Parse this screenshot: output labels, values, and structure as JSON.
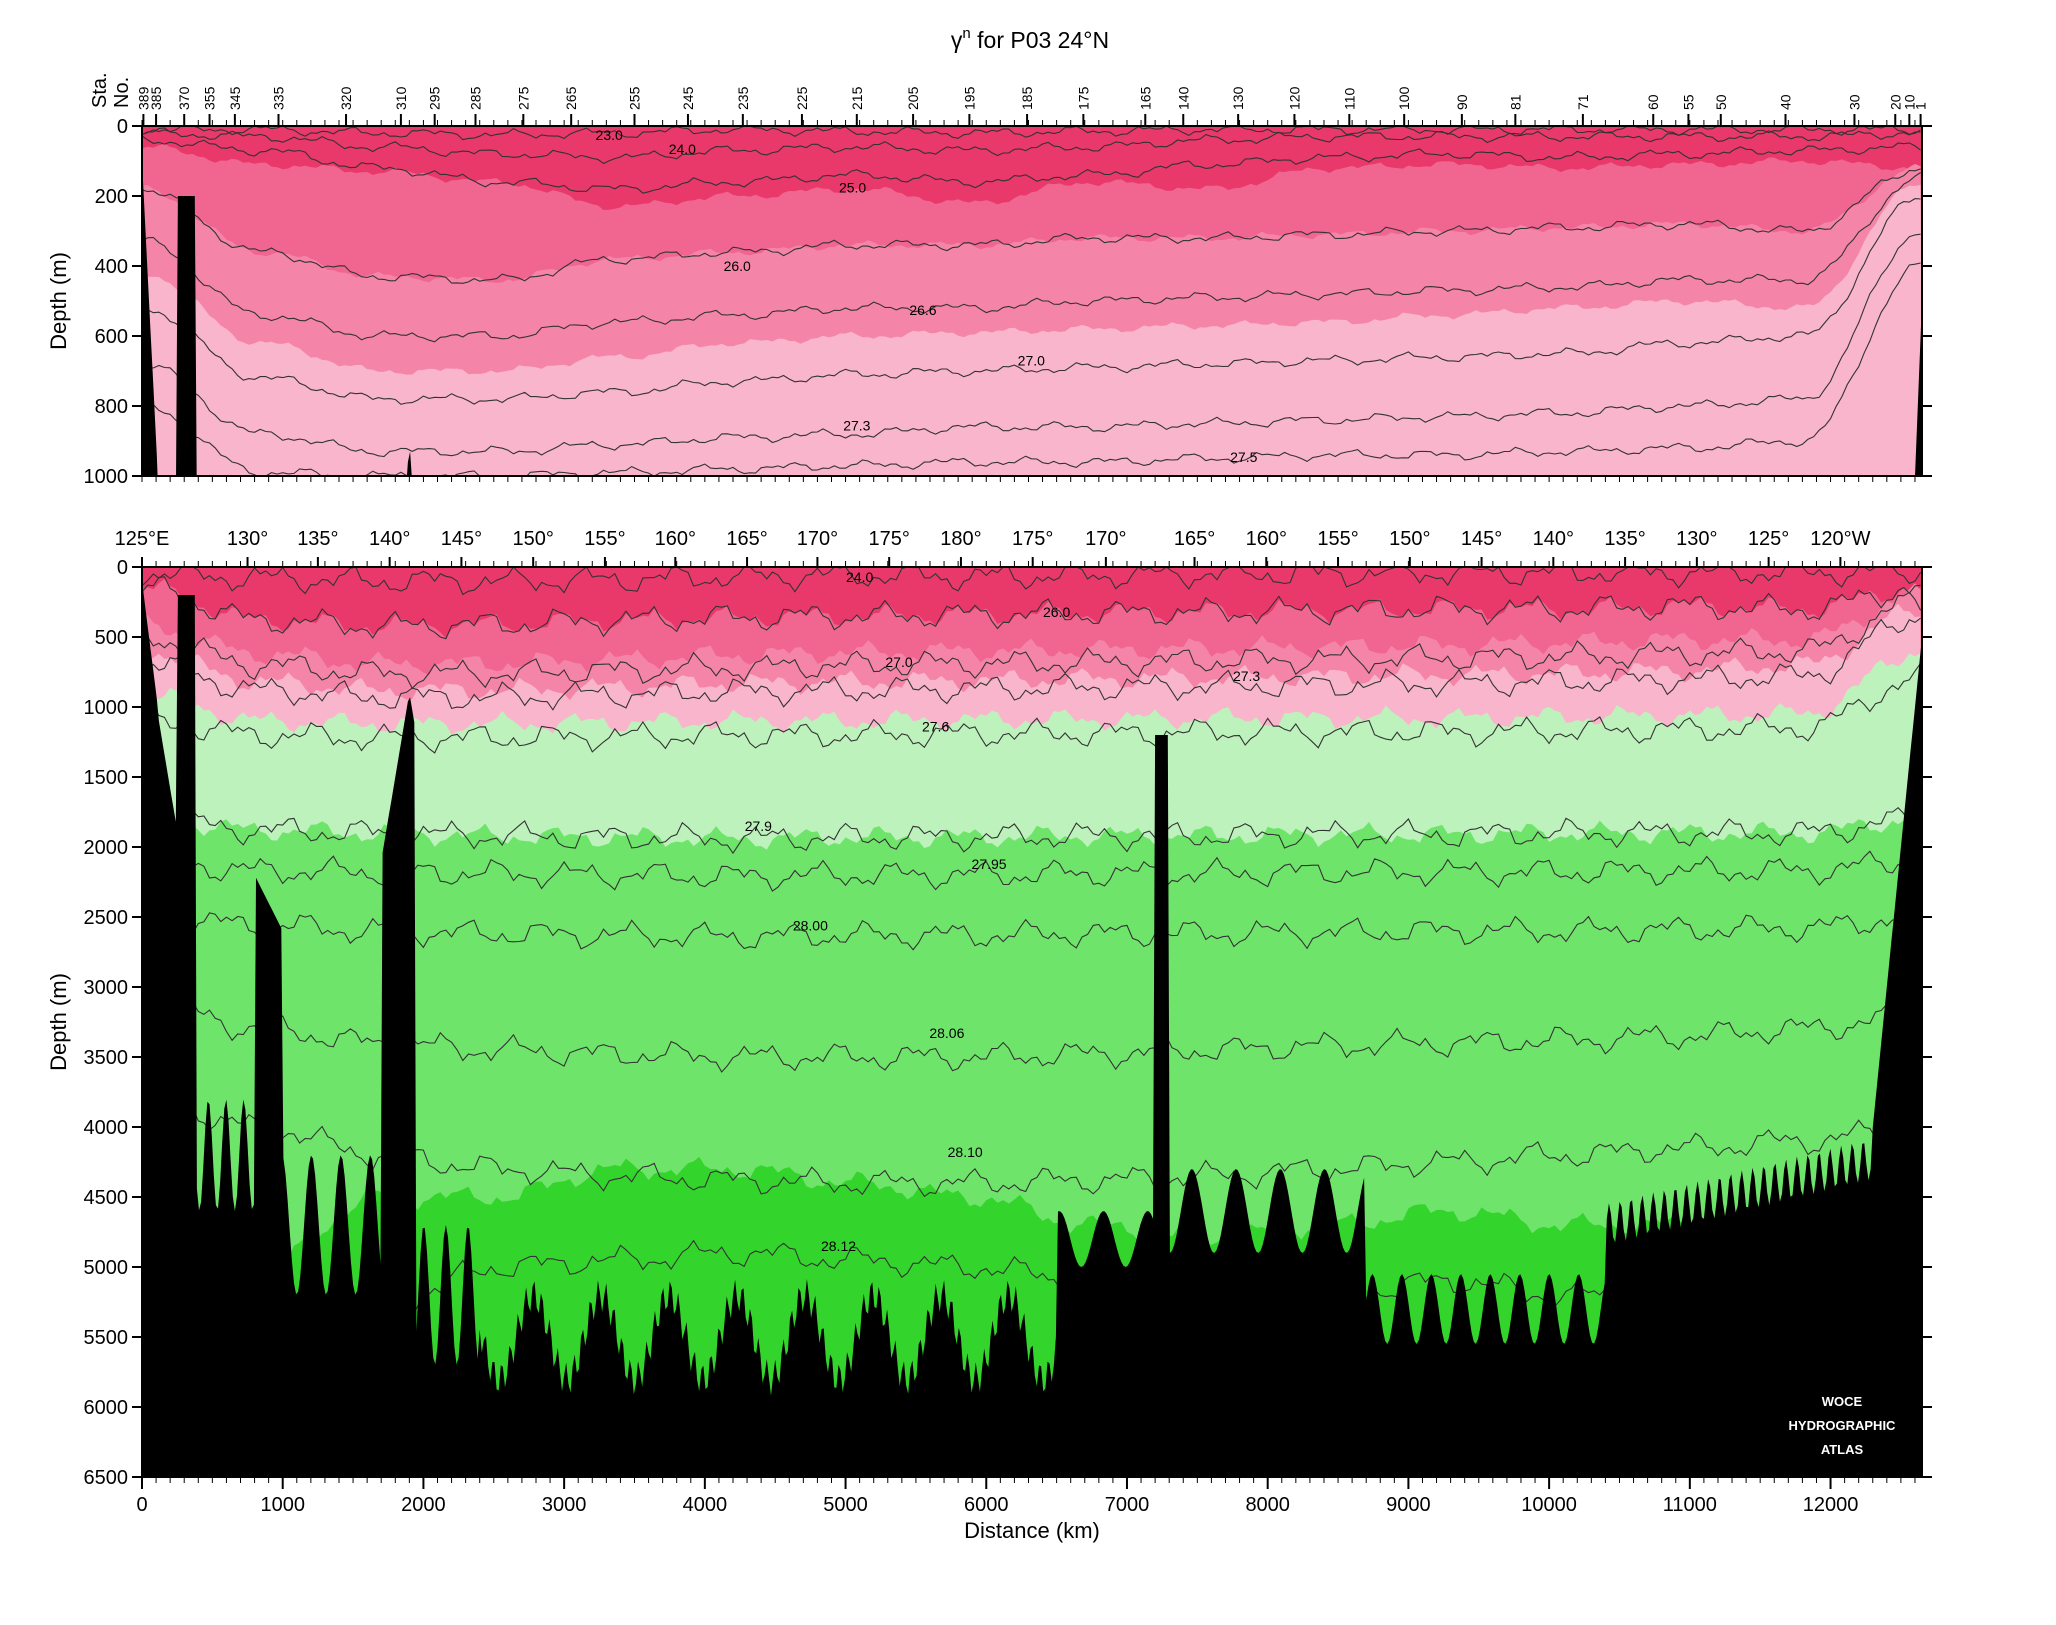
{
  "title_main": "γ",
  "title_sup": "n",
  "title_rest": " for P03 24°N",
  "station_axis_title": [
    "Sta.",
    "No."
  ],
  "watermark": [
    "WOCE",
    "HYDROGRAPHIC",
    "ATLAS"
  ],
  "colors": {
    "band_1": "#e8396a",
    "band_2": "#f06690",
    "band_3": "#f585a8",
    "band_4": "#f9b5cc",
    "band_5": "#bdf2bc",
    "band_6": "#6fe46a",
    "band_7": "#33d42b",
    "bathymetry": "#000000",
    "contour_line": "#333333"
  },
  "chart_data": [
    {
      "type": "section-contour",
      "id": "upper",
      "title": "γn for P03 24°N",
      "ylabel": "Depth (m)",
      "ylim": [
        0,
        1000
      ],
      "xlim": [
        0,
        12650
      ],
      "y_ticks": [
        0,
        200,
        400,
        600,
        800,
        1000
      ],
      "station_ticks": [
        {
          "label": "389",
          "x": 10
        },
        {
          "label": "385",
          "x": 100
        },
        {
          "label": "370",
          "x": 300
        },
        {
          "label": "355",
          "x": 480
        },
        {
          "label": "345",
          "x": 660
        },
        {
          "label": "335",
          "x": 970
        },
        {
          "label": "320",
          "x": 1450
        },
        {
          "label": "310",
          "x": 1840
        },
        {
          "label": "295",
          "x": 2080
        },
        {
          "label": "285",
          "x": 2370
        },
        {
          "label": "275",
          "x": 2710
        },
        {
          "label": "265",
          "x": 3050
        },
        {
          "label": "255",
          "x": 3500
        },
        {
          "label": "245",
          "x": 3880
        },
        {
          "label": "235",
          "x": 4270
        },
        {
          "label": "225",
          "x": 4690
        },
        {
          "label": "215",
          "x": 5080
        },
        {
          "label": "205",
          "x": 5480
        },
        {
          "label": "195",
          "x": 5880
        },
        {
          "label": "185",
          "x": 6290
        },
        {
          "label": "175",
          "x": 6690
        },
        {
          "label": "165",
          "x": 7130
        },
        {
          "label": "140",
          "x": 7400
        },
        {
          "label": "130",
          "x": 7790
        },
        {
          "label": "120",
          "x": 8190
        },
        {
          "label": "110",
          "x": 8580
        },
        {
          "label": "100",
          "x": 8970
        },
        {
          "label": "90",
          "x": 9380
        },
        {
          "label": "81",
          "x": 9760
        },
        {
          "label": "71",
          "x": 10240
        },
        {
          "label": "60",
          "x": 10740
        },
        {
          "label": "55",
          "x": 10990
        },
        {
          "label": "50",
          "x": 11220
        },
        {
          "label": "40",
          "x": 11680
        },
        {
          "label": "30",
          "x": 12170
        },
        {
          "label": "20",
          "x": 12460
        },
        {
          "label": "10",
          "x": 12560
        },
        {
          "label": "1",
          "x": 12640
        }
      ],
      "fill_boundaries": [
        {
          "level": "25.5",
          "depth": [
            60,
            110,
            130,
            160,
            230,
            200,
            180,
            220,
            160,
            180,
            120,
            110,
            120,
            110,
            100,
            120
          ]
        },
        {
          "level": "26.0",
          "depth": [
            180,
            360,
            430,
            440,
            380,
            360,
            340,
            340,
            320,
            320,
            310,
            300,
            290,
            280,
            300,
            120
          ]
        },
        {
          "level": "26.8",
          "depth": [
            420,
            620,
            700,
            700,
            660,
            620,
            600,
            590,
            580,
            570,
            560,
            540,
            520,
            500,
            520,
            160
          ]
        },
        {
          "level": "27.2",
          "depth": [
            600,
            820,
            880,
            880,
            860,
            830,
            820,
            800,
            800,
            780,
            770,
            760,
            750,
            720,
            680,
            250
          ]
        }
      ],
      "contours": [
        {
          "level": "23.0",
          "depth": [
            10,
            10,
            20,
            25,
            20,
            10,
            15,
            20,
            15,
            10,
            10,
            10,
            10,
            10,
            10,
            10
          ]
        },
        {
          "level": "24.0",
          "depth": [
            20,
            30,
            60,
            80,
            90,
            70,
            60,
            70,
            60,
            40,
            30,
            30,
            30,
            30,
            30,
            20
          ]
        },
        {
          "level": "25.0",
          "depth": [
            40,
            70,
            120,
            160,
            180,
            160,
            140,
            160,
            140,
            110,
            90,
            80,
            90,
            80,
            70,
            60
          ]
        },
        {
          "level": "26.0",
          "depth": [
            180,
            360,
            430,
            440,
            380,
            360,
            340,
            340,
            320,
            320,
            310,
            300,
            290,
            280,
            300,
            120
          ]
        },
        {
          "level": "26.6",
          "depth": [
            330,
            540,
            600,
            600,
            560,
            540,
            520,
            520,
            500,
            490,
            480,
            470,
            460,
            440,
            440,
            150
          ]
        },
        {
          "level": "27.0",
          "depth": [
            520,
            720,
            780,
            780,
            760,
            730,
            710,
            700,
            690,
            680,
            670,
            660,
            650,
            620,
            600,
            200
          ]
        },
        {
          "level": "27.3",
          "depth": [
            680,
            880,
            930,
            930,
            910,
            890,
            880,
            860,
            860,
            850,
            840,
            830,
            820,
            800,
            780,
            300
          ]
        },
        {
          "level": "27.5",
          "depth": [
            800,
            990,
            1000,
            1000,
            990,
            980,
            970,
            960,
            960,
            950,
            940,
            940,
            930,
            920,
            900,
            400
          ]
        }
      ],
      "contour_labels": [
        {
          "text": "23.0",
          "x": 3320,
          "depth": 25
        },
        {
          "text": "24.0",
          "x": 3840,
          "depth": 65
        },
        {
          "text": "25.0",
          "x": 5050,
          "depth": 175
        },
        {
          "text": "26.0",
          "x": 4230,
          "depth": 400
        },
        {
          "text": "26.6",
          "x": 5550,
          "depth": 525
        },
        {
          "text": "27.0",
          "x": 6320,
          "depth": 670
        },
        {
          "text": "27.3",
          "x": 5080,
          "depth": 855
        },
        {
          "text": "27.5",
          "x": 7830,
          "depth": 945
        }
      ]
    },
    {
      "type": "section-contour",
      "id": "lower",
      "xlabel": "Distance (km)",
      "ylabel": "Depth (m)",
      "ylim": [
        0,
        6500
      ],
      "xlim": [
        0,
        12650
      ],
      "x_ticks": [
        0,
        1000,
        2000,
        3000,
        4000,
        5000,
        6000,
        7000,
        8000,
        9000,
        10000,
        11000,
        12000
      ],
      "y_ticks": [
        0,
        500,
        1000,
        1500,
        2000,
        2500,
        3000,
        3500,
        4000,
        4500,
        5000,
        5500,
        6000,
        6500
      ],
      "longitude_ticks": [
        {
          "label": "125°E",
          "x": 0
        },
        {
          "label": "130°",
          "x": 750
        },
        {
          "label": "135°",
          "x": 1250
        },
        {
          "label": "140°",
          "x": 1760
        },
        {
          "label": "145°",
          "x": 2270
        },
        {
          "label": "150°",
          "x": 2780
        },
        {
          "label": "155°",
          "x": 3290
        },
        {
          "label": "160°",
          "x": 3790
        },
        {
          "label": "165°",
          "x": 4300
        },
        {
          "label": "170°",
          "x": 4800
        },
        {
          "label": "175°",
          "x": 5310
        },
        {
          "label": "180°",
          "x": 5820
        },
        {
          "label": "175°",
          "x": 6330
        },
        {
          "label": "170°",
          "x": 6850
        },
        {
          "label": "165°",
          "x": 7480
        },
        {
          "label": "160°",
          "x": 7990
        },
        {
          "label": "155°",
          "x": 8500
        },
        {
          "label": "150°",
          "x": 9010
        },
        {
          "label": "145°",
          "x": 9520
        },
        {
          "label": "140°",
          "x": 10030
        },
        {
          "label": "135°",
          "x": 10540
        },
        {
          "label": "130°",
          "x": 11050
        },
        {
          "label": "125°",
          "x": 11560
        },
        {
          "label": "120°W",
          "x": 12070
        }
      ],
      "fill_boundaries": [
        {
          "level": "26.0",
          "depth": [
            150,
            380,
            420,
            410,
            380,
            360,
            350,
            340,
            330,
            320,
            310,
            300,
            300,
            280,
            300,
            150
          ]
        },
        {
          "level": "26.8",
          "depth": [
            420,
            620,
            690,
            690,
            660,
            630,
            610,
            600,
            590,
            580,
            570,
            560,
            540,
            520,
            520,
            200
          ]
        },
        {
          "level": "27.2",
          "depth": [
            600,
            820,
            880,
            880,
            860,
            830,
            820,
            810,
            800,
            790,
            780,
            770,
            760,
            740,
            700,
            300
          ]
        },
        {
          "level": "27.5",
          "depth": [
            900,
            1100,
            1120,
            1120,
            1110,
            1100,
            1100,
            1090,
            1090,
            1080,
            1080,
            1080,
            1070,
            1060,
            1050,
            600
          ]
        },
        {
          "level": "27.9",
          "depth": [
            1800,
            1880,
            1900,
            1920,
            1930,
            1940,
            1930,
            1930,
            1920,
            1920,
            1910,
            1910,
            1900,
            1900,
            1900,
            1800
          ]
        },
        {
          "level": "28.11",
          "depth": [
            5000,
            5000,
            4500,
            4500,
            4300,
            4300,
            4400,
            4500,
            4700,
            4800,
            4700,
            4600,
            4700,
            4700,
            4700,
            4700
          ]
        }
      ],
      "contours": [
        {
          "level": "24.0",
          "depth": [
            40,
            80,
            100,
            100,
            90,
            70,
            60,
            70,
            60,
            50,
            50,
            40,
            40,
            40,
            40,
            30
          ]
        },
        {
          "level": "26.0",
          "depth": [
            150,
            380,
            420,
            410,
            380,
            360,
            350,
            340,
            330,
            320,
            310,
            300,
            300,
            280,
            300,
            150
          ]
        },
        {
          "level": "27.0",
          "depth": [
            500,
            700,
            760,
            760,
            740,
            720,
            700,
            690,
            680,
            670,
            660,
            650,
            640,
            620,
            600,
            250
          ]
        },
        {
          "level": "27.3",
          "depth": [
            680,
            880,
            930,
            930,
            910,
            890,
            880,
            870,
            860,
            850,
            840,
            830,
            820,
            800,
            780,
            350
          ]
        },
        {
          "level": "27.6",
          "depth": [
            1100,
            1200,
            1220,
            1220,
            1210,
            1200,
            1200,
            1190,
            1190,
            1180,
            1180,
            1180,
            1170,
            1160,
            1150,
            800
          ]
        },
        {
          "level": "27.9",
          "depth": [
            1800,
            1880,
            1900,
            1920,
            1930,
            1940,
            1930,
            1930,
            1920,
            1920,
            1910,
            1910,
            1900,
            1900,
            1900,
            1800
          ]
        },
        {
          "level": "27.95",
          "depth": [
            2100,
            2170,
            2180,
            2190,
            2200,
            2210,
            2200,
            2200,
            2190,
            2190,
            2180,
            2180,
            2180,
            2170,
            2170,
            2100
          ]
        },
        {
          "level": "28.00",
          "depth": [
            2500,
            2560,
            2600,
            2620,
            2630,
            2640,
            2630,
            2630,
            2620,
            2620,
            2610,
            2600,
            2600,
            2590,
            2580,
            2500
          ]
        },
        {
          "level": "28.06",
          "depth": [
            3100,
            3300,
            3400,
            3450,
            3480,
            3500,
            3500,
            3500,
            3480,
            3450,
            3420,
            3400,
            3380,
            3350,
            3300,
            3200
          ]
        },
        {
          "level": "28.10",
          "depth": [
            3800,
            4000,
            4200,
            4300,
            4350,
            4380,
            4400,
            4400,
            4380,
            4350,
            4300,
            4250,
            4200,
            4150,
            4100,
            4000
          ]
        },
        {
          "level": "28.12",
          "depth": [
            5200,
            5500,
            5300,
            5000,
            4950,
            4900,
            4950,
            5000,
            5100,
            5200,
            5200,
            5100,
            5200,
            5200,
            5200,
            5200
          ]
        }
      ],
      "contour_labels": [
        {
          "text": "24.0",
          "x": 5100,
          "depth": 70
        },
        {
          "text": "26.0",
          "x": 6500,
          "depth": 320
        },
        {
          "text": "27.0",
          "x": 5380,
          "depth": 680
        },
        {
          "text": "27.3",
          "x": 7850,
          "depth": 780
        },
        {
          "text": "27.6",
          "x": 5640,
          "depth": 1140
        },
        {
          "text": "27.9",
          "x": 4380,
          "depth": 1850
        },
        {
          "text": "27.95",
          "x": 6020,
          "depth": 2120
        },
        {
          "text": "28.00",
          "x": 4750,
          "depth": 2560
        },
        {
          "text": "28.06",
          "x": 5720,
          "depth": 3330
        },
        {
          "text": "28.10",
          "x": 5850,
          "depth": 4180
        },
        {
          "text": "28.12",
          "x": 4950,
          "depth": 4850
        }
      ]
    }
  ]
}
